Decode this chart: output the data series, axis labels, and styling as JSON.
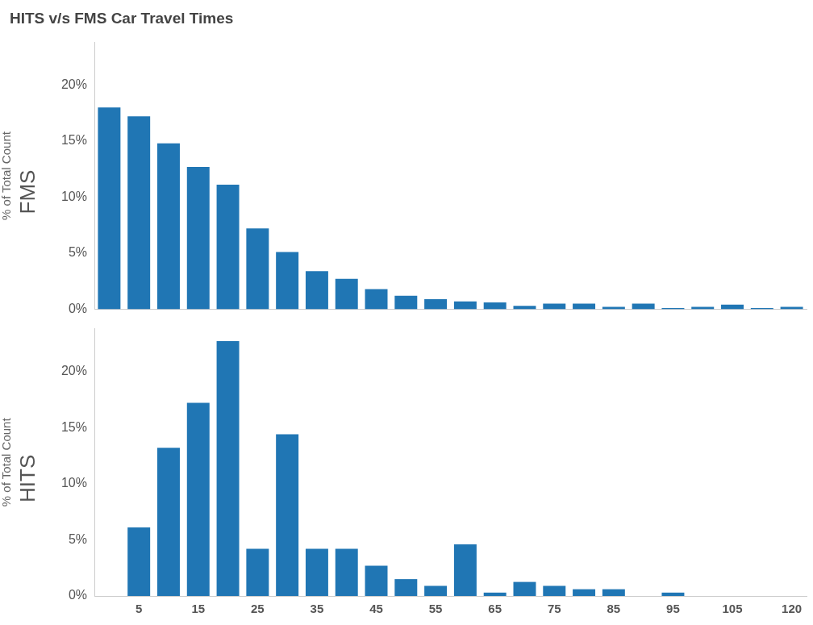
{
  "chart_data": [
    {
      "type": "bar",
      "title": "HITS v/s FMS Car Travel Times",
      "ylabel": "% of Total Count",
      "categories": [
        null,
        "5",
        null,
        "15",
        null,
        "25",
        null,
        "35",
        null,
        "45",
        null,
        "55",
        null,
        "65",
        null,
        "75",
        null,
        "85",
        null,
        "95",
        null,
        "105",
        null,
        "120"
      ],
      "series": [
        {
          "name": "FMS",
          "color": "#2076b4",
          "values": [
            18.0,
            17.2,
            14.8,
            12.7,
            11.1,
            7.2,
            5.1,
            3.4,
            2.7,
            1.8,
            1.2,
            0.9,
            0.7,
            0.6,
            0.3,
            0.5,
            0.5,
            0.2,
            0.5,
            0.1,
            0.2,
            0.4,
            0.1,
            0.2
          ]
        }
      ],
      "ylim": [
        0,
        23.8
      ],
      "yticks": [
        {
          "value": 0,
          "label": "0%"
        },
        {
          "value": 5,
          "label": "5%"
        },
        {
          "value": 10,
          "label": "10%"
        },
        {
          "value": 15,
          "label": "15%"
        },
        {
          "value": 20,
          "label": "20%"
        }
      ],
      "tick_labels": "y",
      "grid": false,
      "legend": false
    },
    {
      "type": "bar",
      "ylabel": "% of Total Count",
      "categories": [
        null,
        "5",
        null,
        "15",
        null,
        "25",
        null,
        "35",
        null,
        "45",
        null,
        "55",
        null,
        "65",
        null,
        "75",
        null,
        "85",
        null,
        "95",
        null,
        "105",
        null,
        "120"
      ],
      "series": [
        {
          "name": "HITS",
          "color": "#2076b4",
          "values": [
            null,
            6.1,
            13.2,
            17.2,
            22.7,
            4.2,
            14.4,
            4.2,
            4.2,
            2.7,
            1.5,
            0.9,
            4.6,
            0.3,
            1.25,
            0.9,
            0.6,
            0.6,
            null,
            0.3,
            null,
            null,
            null,
            null
          ]
        }
      ],
      "ylim": [
        0,
        23.8
      ],
      "yticks": [
        {
          "value": 0,
          "label": "0%"
        },
        {
          "value": 5,
          "label": "5%"
        },
        {
          "value": 10,
          "label": "10%"
        },
        {
          "value": 15,
          "label": "15%"
        },
        {
          "value": 20,
          "label": "20%"
        }
      ],
      "grid": false,
      "legend": false
    }
  ]
}
